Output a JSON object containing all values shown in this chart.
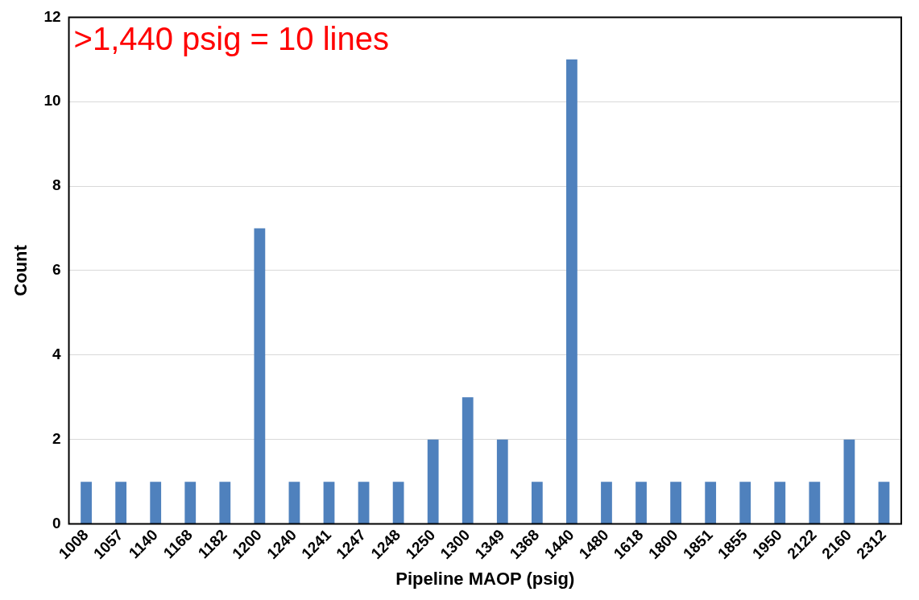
{
  "chart_data": {
    "type": "bar",
    "xlabel": "Pipeline MAOP (psig)",
    "ylabel": "Count",
    "categories": [
      "1008",
      "1057",
      "1140",
      "1168",
      "1182",
      "1200",
      "1240",
      "1241",
      "1247",
      "1248",
      "1250",
      "1300",
      "1349",
      "1368",
      "1440",
      "1480",
      "1618",
      "1800",
      "1851",
      "1855",
      "1950",
      "2122",
      "2160",
      "2312"
    ],
    "values": [
      1,
      1,
      1,
      1,
      1,
      7,
      1,
      1,
      1,
      1,
      2,
      3,
      2,
      1,
      11,
      1,
      1,
      1,
      1,
      1,
      1,
      1,
      2,
      1
    ],
    "color": "#4f81bd",
    "ylim": [
      0,
      12
    ],
    "yticks": [
      0,
      2,
      4,
      6,
      8,
      10,
      12
    ],
    "grid": "y",
    "legend": false,
    "annotations": [
      ">1,440 psig = 10 lines"
    ]
  }
}
